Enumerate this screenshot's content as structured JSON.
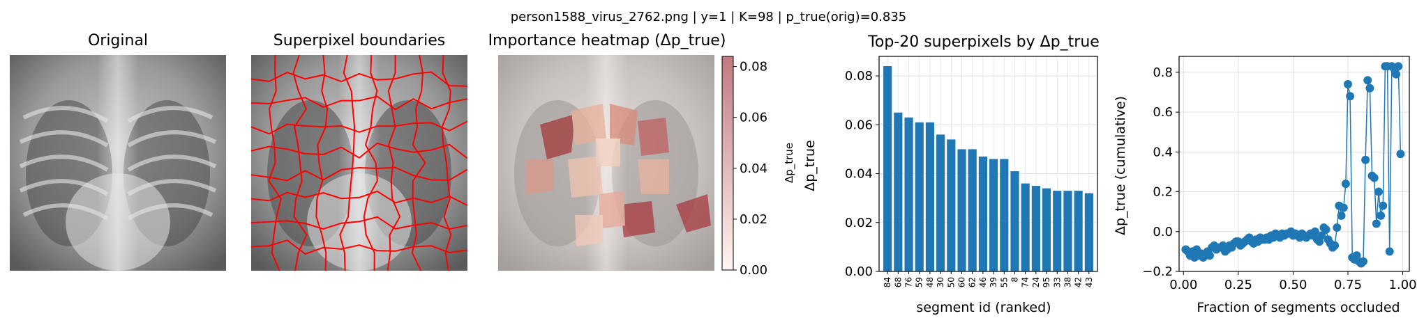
{
  "suptitle": "person1588_virus_2762.png | y=1 | K=98 | p_true(orig)=0.835",
  "panels": {
    "original": {
      "title": "Original"
    },
    "superpixels": {
      "title": "Superpixel boundaries"
    },
    "heatmap": {
      "title": "Importance heatmap (Δp_true)"
    }
  },
  "colorbar": {
    "label": "Δp_true",
    "ticks": [
      "0.00",
      "0.02",
      "0.04",
      "0.06",
      "0.08"
    ],
    "vmin": 0,
    "vmax": 0.084,
    "colors": [
      "#fff5f0",
      "#c07a80"
    ]
  },
  "colors": {
    "bar": "#1f77b4",
    "line": "#1f77b4",
    "boundary": "#ff0000"
  },
  "chart_data": [
    {
      "type": "bar",
      "title": "Top-20 superpixels by Δp_true",
      "xlabel": "segment id (ranked)",
      "ylabel": "Δp_true",
      "categories": [
        "84",
        "68",
        "76",
        "59",
        "48",
        "30",
        "50",
        "60",
        "62",
        "46",
        "39",
        "55",
        "8",
        "74",
        "24",
        "95",
        "33",
        "38",
        "42",
        "43"
      ],
      "values": [
        0.084,
        0.065,
        0.063,
        0.061,
        0.061,
        0.056,
        0.054,
        0.05,
        0.05,
        0.047,
        0.046,
        0.046,
        0.041,
        0.036,
        0.035,
        0.034,
        0.033,
        0.033,
        0.033,
        0.032
      ],
      "ylim": [
        0,
        0.088
      ],
      "yticks": [
        "0.00",
        "0.02",
        "0.04",
        "0.06",
        "0.08"
      ],
      "grid": true
    },
    {
      "type": "line",
      "xlabel": "Fraction of segments occluded",
      "ylabel": "Δp_true (cumulative)",
      "xlim": [
        -0.02,
        1.03
      ],
      "ylim": [
        -0.2,
        0.88
      ],
      "xticks": [
        "0.00",
        "0.25",
        "0.50",
        "0.75",
        "1.00"
      ],
      "yticks": [
        "−0.2",
        "0.0",
        "0.2",
        "0.4",
        "0.6",
        "0.8"
      ],
      "grid": true,
      "x": [
        0.01,
        0.02,
        0.03,
        0.04,
        0.05,
        0.06,
        0.07,
        0.08,
        0.09,
        0.1,
        0.11,
        0.12,
        0.13,
        0.14,
        0.15,
        0.16,
        0.17,
        0.18,
        0.19,
        0.2,
        0.21,
        0.22,
        0.23,
        0.24,
        0.25,
        0.26,
        0.27,
        0.28,
        0.29,
        0.3,
        0.31,
        0.32,
        0.33,
        0.34,
        0.35,
        0.36,
        0.37,
        0.38,
        0.39,
        0.4,
        0.41,
        0.42,
        0.43,
        0.44,
        0.45,
        0.46,
        0.47,
        0.48,
        0.49,
        0.5,
        0.51,
        0.52,
        0.53,
        0.54,
        0.55,
        0.56,
        0.57,
        0.58,
        0.59,
        0.6,
        0.61,
        0.62,
        0.63,
        0.64,
        0.65,
        0.66,
        0.67,
        0.68,
        0.69,
        0.7,
        0.71,
        0.72,
        0.73,
        0.74,
        0.75,
        0.76,
        0.77,
        0.78,
        0.79,
        0.8,
        0.81,
        0.82,
        0.83,
        0.84,
        0.85,
        0.86,
        0.87,
        0.88,
        0.89,
        0.9,
        0.91,
        0.92,
        0.93,
        0.94,
        0.95,
        0.96,
        0.97,
        0.98,
        0.99
      ],
      "y": [
        -0.09,
        -0.1,
        -0.12,
        -0.1,
        -0.13,
        -0.09,
        -0.12,
        -0.11,
        -0.13,
        -0.12,
        -0.1,
        -0.12,
        -0.08,
        -0.07,
        -0.09,
        -0.08,
        -0.08,
        -0.07,
        -0.1,
        -0.09,
        -0.07,
        -0.08,
        -0.06,
        -0.05,
        -0.05,
        -0.07,
        -0.06,
        -0.05,
        -0.04,
        -0.03,
        -0.05,
        -0.06,
        -0.04,
        -0.05,
        -0.03,
        -0.04,
        -0.04,
        -0.03,
        -0.04,
        -0.02,
        -0.03,
        -0.01,
        -0.02,
        -0.03,
        -0.01,
        -0.02,
        -0.01,
        -0.01,
        0.0,
        -0.02,
        -0.01,
        -0.02,
        -0.03,
        -0.01,
        -0.02,
        -0.03,
        -0.02,
        -0.01,
        -0.02,
        0.0,
        -0.04,
        -0.05,
        -0.02,
        0.02,
        0.01,
        -0.04,
        -0.06,
        -0.08,
        -0.07,
        0.02,
        0.13,
        0.08,
        0.12,
        0.24,
        0.74,
        0.68,
        -0.13,
        -0.14,
        -0.12,
        -0.15,
        -0.16,
        -0.15,
        0.36,
        0.76,
        0.72,
        0.28,
        0.27,
        0.04,
        0.2,
        0.08,
        0.13,
        0.83,
        0.83,
        -0.1,
        0.83,
        0.82,
        0.79,
        0.83,
        0.39
      ]
    }
  ]
}
